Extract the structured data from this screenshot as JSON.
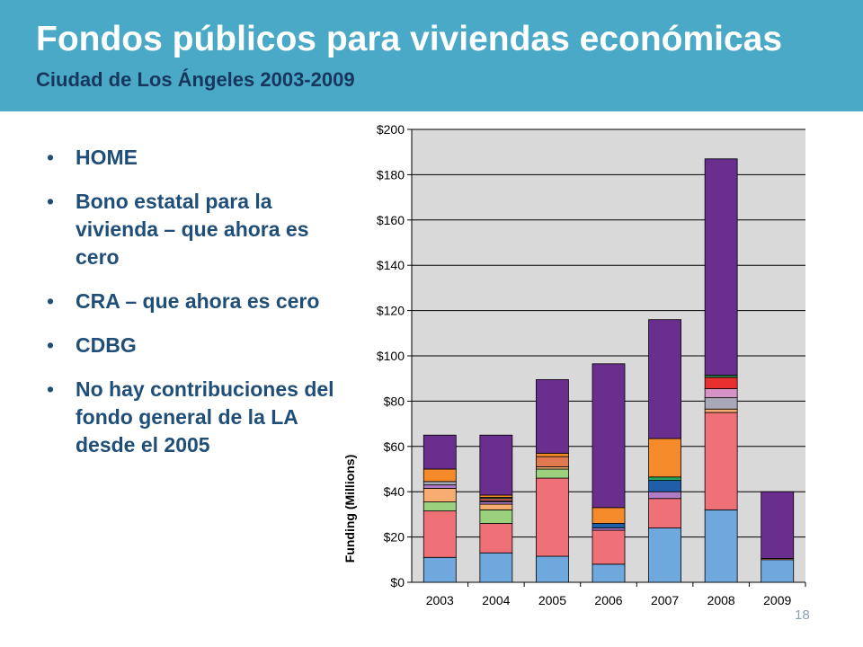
{
  "slide": {
    "title": "Fondos públicos para viviendas económicas",
    "subtitle": "Ciudad de Los Ángeles 2003-2009",
    "page_number": "18",
    "bullets": [
      "HOME",
      "Bono estatal para la vivienda – que ahora es cero",
      "CRA – que ahora es cero",
      "CDBG",
      "No hay contribuciones del fondo general de la LA desde el 2005"
    ],
    "bullet_glyph": "•"
  },
  "chart_data": {
    "type": "bar",
    "stacked": true,
    "categories": [
      "2003",
      "2004",
      "2005",
      "2006",
      "2007",
      "2008",
      "2009"
    ],
    "ylabel": "Funding (Millions)",
    "xlabel": "",
    "ylim": [
      0,
      200
    ],
    "yticks": [
      0,
      20,
      40,
      60,
      80,
      100,
      120,
      140,
      160,
      180,
      200
    ],
    "ytick_labels": [
      "$0",
      "$20",
      "$40",
      "$60",
      "$80",
      "$100",
      "$120",
      "$140",
      "$160",
      "$180",
      "$200"
    ],
    "grid": true,
    "legend": "none",
    "plot_background": "#d9d9d9",
    "series": [
      {
        "color": "#6fa8dc",
        "values": [
          11,
          13,
          11.5,
          8,
          24,
          32,
          10
        ]
      },
      {
        "color": "#f07078",
        "values": [
          20.5,
          13,
          34.5,
          15,
          13,
          43,
          0
        ]
      },
      {
        "color": "#2e8b57",
        "values": [
          0,
          0,
          0,
          0,
          0,
          0,
          0
        ]
      },
      {
        "color": "#9bd07c",
        "values": [
          4,
          6,
          4,
          0,
          0,
          0,
          0
        ]
      },
      {
        "color": "#f6ad6f",
        "values": [
          6,
          2.5,
          1,
          0,
          0,
          1.5,
          0.5
        ]
      },
      {
        "color": "#b07cc6",
        "values": [
          1.5,
          1,
          0,
          1,
          3,
          0,
          0
        ]
      },
      {
        "color": "#a8a8b8",
        "values": [
          1.5,
          0.5,
          0,
          0,
          0,
          5,
          0
        ]
      },
      {
        "color": "#1f5ea8",
        "values": [
          0,
          0,
          0,
          2,
          5,
          0,
          0
        ]
      },
      {
        "color": "#e06262",
        "values": [
          0,
          1,
          0,
          0,
          0,
          0,
          0
        ]
      },
      {
        "color": "#2ba860",
        "values": [
          0,
          0.5,
          0,
          0,
          1.5,
          0,
          0
        ]
      },
      {
        "color": "#d694c6",
        "values": [
          0,
          0,
          0,
          0,
          0,
          4,
          0
        ]
      },
      {
        "color": "#e83030",
        "values": [
          0,
          0,
          0,
          0,
          0,
          5,
          0
        ]
      },
      {
        "color": "#e07850",
        "values": [
          0,
          0,
          4.5,
          0,
          0,
          0,
          0
        ]
      },
      {
        "color": "#f58a2a",
        "values": [
          5.5,
          1,
          1.5,
          7,
          17,
          0,
          0
        ]
      },
      {
        "color": "#2e8b57",
        "values": [
          0,
          0,
          0,
          0,
          0,
          1,
          0
        ]
      },
      {
        "color": "#6a2e8e",
        "values": [
          15,
          26.5,
          32.5,
          63.5,
          52.5,
          95.5,
          29.5
        ]
      }
    ]
  }
}
